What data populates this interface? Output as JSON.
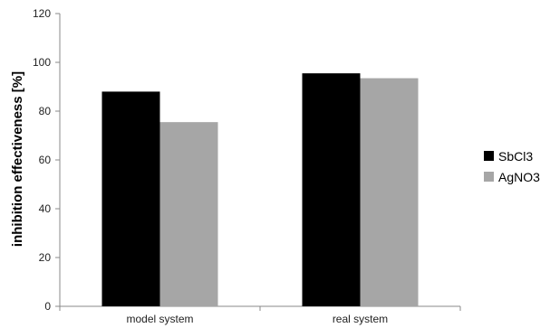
{
  "chart_data": {
    "type": "bar",
    "categories": [
      "model system",
      "real system"
    ],
    "series": [
      {
        "name": "SbCl3",
        "values": [
          88,
          95.5
        ],
        "color": "#000000"
      },
      {
        "name": "AgNO3",
        "values": [
          75.5,
          93.5
        ],
        "color": "#a6a6a6"
      }
    ],
    "xlabel": "",
    "ylabel": "inhibition effectiveness [%]",
    "ylim": [
      0,
      120
    ],
    "yticks": [
      0,
      20,
      40,
      60,
      80,
      100,
      120
    ],
    "grid": false,
    "legend_position": "right"
  }
}
